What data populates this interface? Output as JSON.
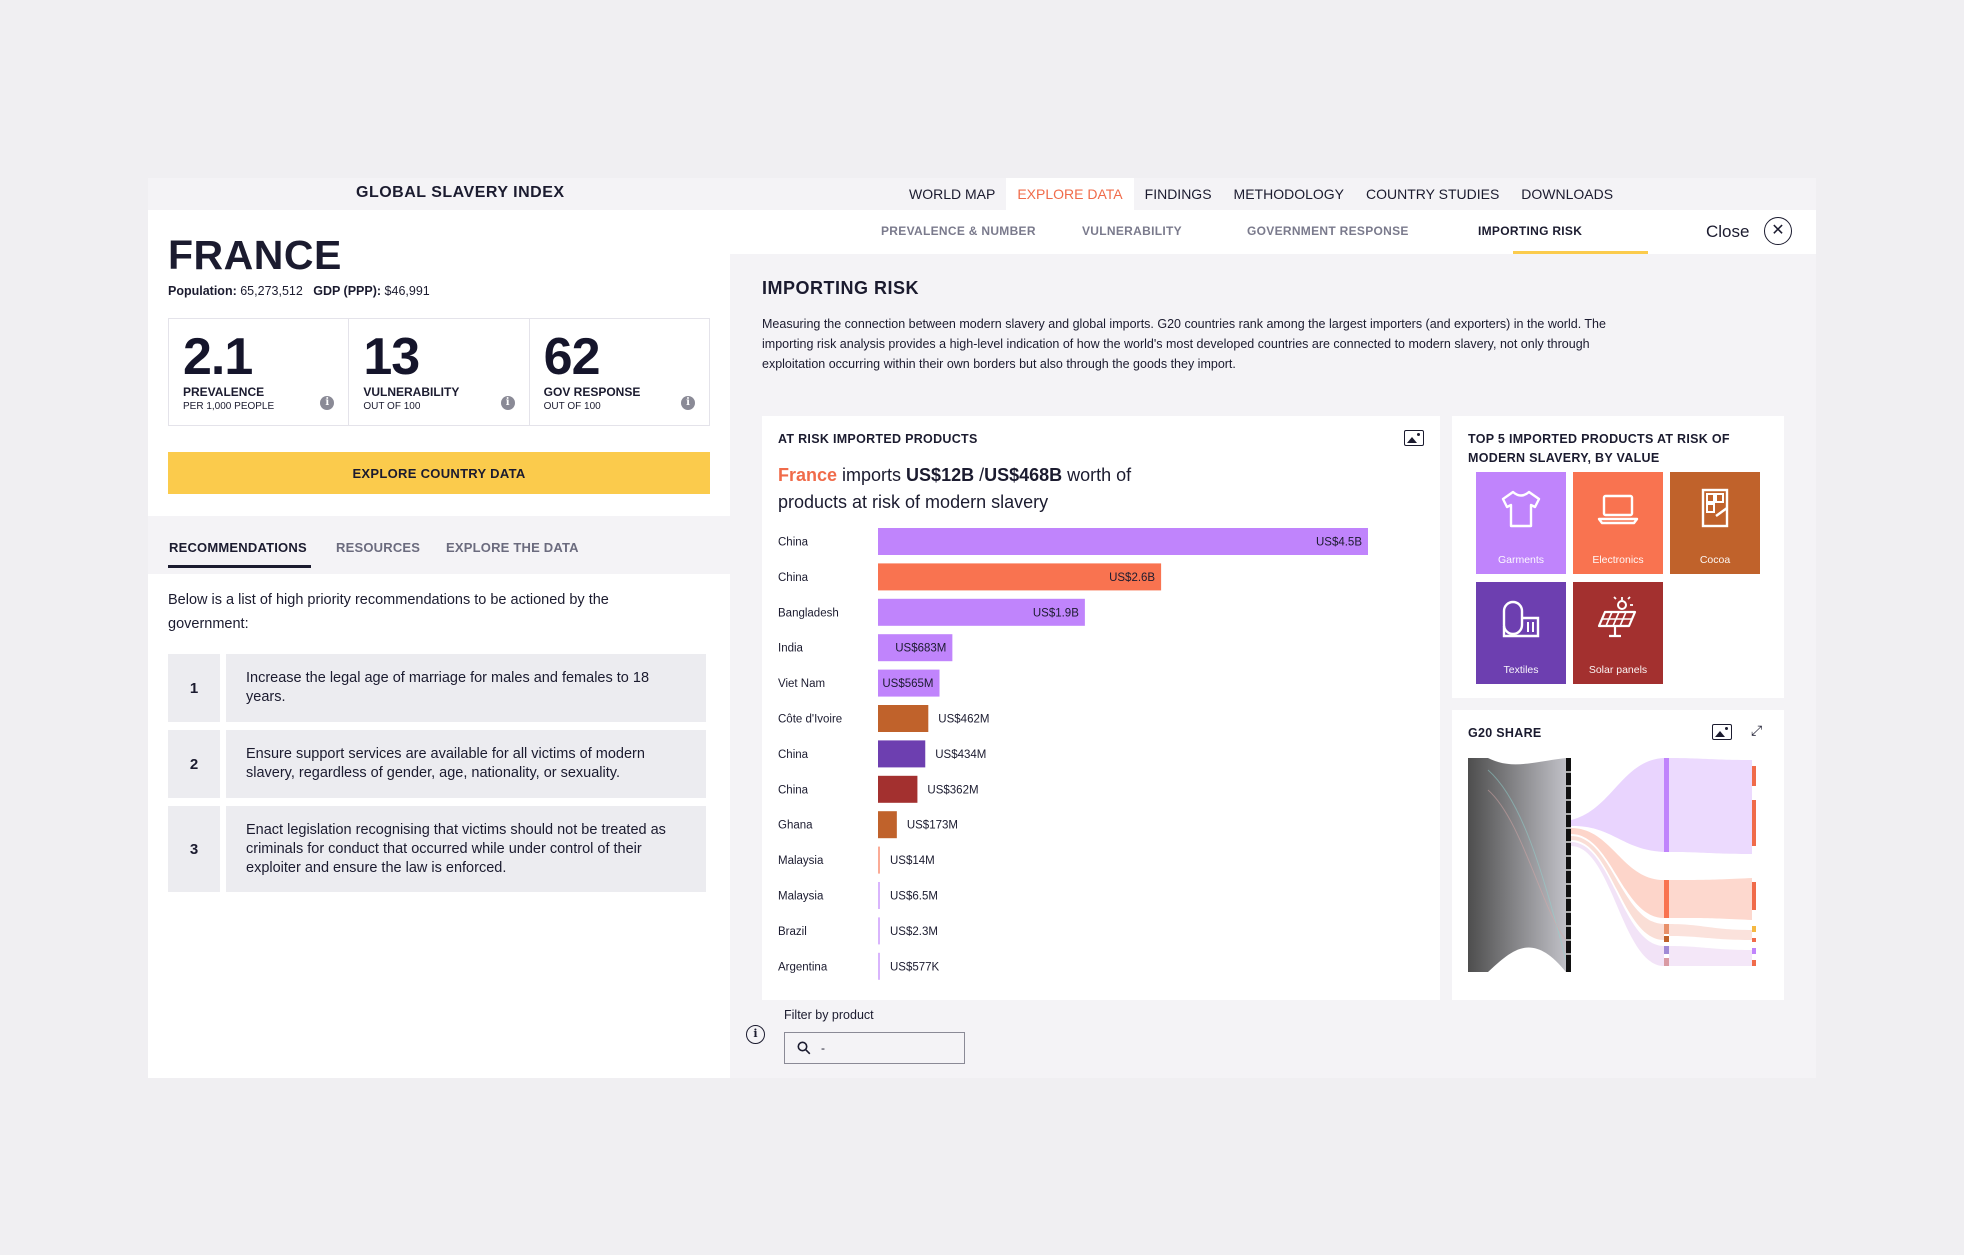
{
  "brand": "GLOBAL SLAVERY INDEX",
  "nav": [
    "WORLD MAP",
    "EXPLORE DATA",
    "FINDINGS",
    "METHODOLOGY",
    "COUNTRY STUDIES",
    "DOWNLOADS"
  ],
  "nav_active": "EXPLORE DATA",
  "country": {
    "name": "FRANCE",
    "population_label": "Population:",
    "population": "65,273,512",
    "gdp_label": "GDP (PPP):",
    "gdp": "$46,991"
  },
  "stats": [
    {
      "value": "2.1",
      "label": "PREVALENCE",
      "sub": "PER 1,000 PEOPLE"
    },
    {
      "value": "13",
      "label": "VULNERABILITY",
      "sub": "OUT OF 100"
    },
    {
      "value": "62",
      "label": "GOV RESPONSE",
      "sub": "OUT OF 100"
    }
  ],
  "explore_button": "EXPLORE COUNTRY DATA",
  "left_tabs": [
    "RECOMMENDATIONS",
    "RESOURCES",
    "EXPLORE THE DATA"
  ],
  "intro": "Below is a list of high priority recommendations to be actioned by the government:",
  "recommendations": [
    {
      "n": "1",
      "text": "Increase the legal age of marriage for males and females to 18 years."
    },
    {
      "n": "2",
      "text": "Ensure support services are available for all victims of modern slavery, regardless of gender, age, nationality, or sexuality."
    },
    {
      "n": "3",
      "text": "Enact legislation recognising that victims should not be treated as criminals for conduct that occurred while under control of their exploiter and ensure the law is enforced."
    }
  ],
  "right_tabs": [
    "PREVALENCE & NUMBER",
    "VULNERABILITY",
    "GOVERNMENT RESPONSE",
    "IMPORTING RISK"
  ],
  "right_tab_active": "IMPORTING RISK",
  "close_label": "Close",
  "section": {
    "title": "IMPORTING RISK",
    "description": "Measuring the connection between modern slavery and global imports. G20 countries rank among the largest importers (and exporters) in the world. The importing risk analysis provides a high-level indication of how the world's most developed countries are connected to modern slavery, not only through exploitation occurring within their own borders but also through the goods they import."
  },
  "at_risk_card": {
    "title": "AT RISK IMPORTED PRODUCTS",
    "headline_country": "France",
    "headline_pre": " imports ",
    "headline_amount": "US$12B",
    "headline_sep": " /",
    "headline_total": "US$468B",
    "headline_post": " worth of products at risk of modern slavery"
  },
  "chart_data": {
    "type": "bar",
    "orientation": "horizontal",
    "categories": [
      "China",
      "China",
      "Bangladesh",
      "India",
      "Viet Nam",
      "Côte d'Ivoire",
      "China",
      "China",
      "Ghana",
      "Malaysia",
      "Malaysia",
      "Brazil",
      "Argentina"
    ],
    "values": [
      4500,
      2600,
      1900,
      683,
      565,
      462,
      434,
      362,
      173,
      14,
      6.5,
      2.3,
      0.577
    ],
    "value_unit": "US$ millions",
    "labels": [
      "US$4.5B",
      "US$2.6B",
      "US$1.9B",
      "US$683M",
      "US$565M",
      "US$462M",
      "US$434M",
      "US$362M",
      "US$173M",
      "US$14M",
      "US$6.5M",
      "US$2.3M",
      "US$577K"
    ],
    "products": [
      "Garments",
      "Electronics",
      "Garments",
      "Garments",
      "Garments",
      "Cocoa",
      "Textiles",
      "Solar panels",
      "Cocoa",
      "Electronics",
      "Garments",
      "Garments",
      "Garments"
    ],
    "xlim": [
      0,
      4500
    ]
  },
  "top5_card": {
    "title": "TOP 5 IMPORTED PRODUCTS AT RISK OF MODERN SLAVERY, BY VALUE",
    "items": [
      {
        "label": "Garments",
        "color": "#c084fc",
        "icon": "tshirt-icon"
      },
      {
        "label": "Electronics",
        "color": "#f97350",
        "icon": "laptop-icon"
      },
      {
        "label": "Cocoa",
        "color": "#c0622b",
        "icon": "chocolate-icon"
      },
      {
        "label": "Textiles",
        "color": "#6d3fb0",
        "icon": "fabric-roll-icon"
      },
      {
        "label": "Solar panels",
        "color": "#a3302f",
        "icon": "solar-panel-icon"
      }
    ]
  },
  "g20_card": {
    "title": "G20 SHARE"
  },
  "filter": {
    "label": "Filter by product",
    "value": "-"
  },
  "colors": {
    "accent": "#f06b4a",
    "yellow": "#fbcb4c",
    "dark": "#1b1b2f"
  }
}
